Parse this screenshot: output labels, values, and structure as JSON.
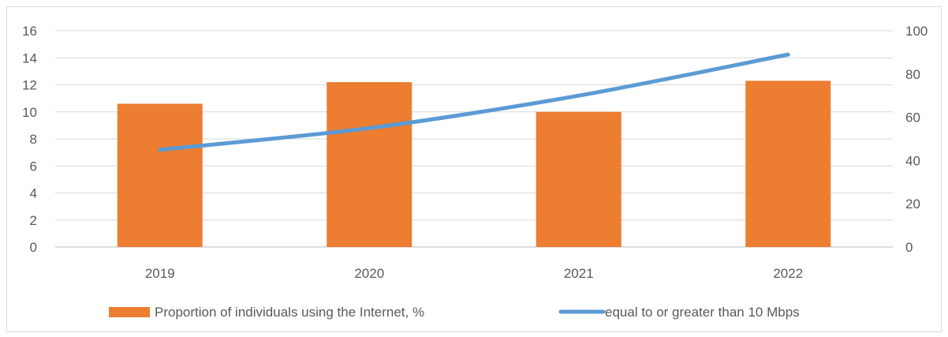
{
  "chart_data": {
    "type": "bar",
    "categories": [
      "2019",
      "2020",
      "2021",
      "2022"
    ],
    "series": [
      {
        "name": "Proportion of individuals using the Internet, %",
        "type": "bar",
        "axis": "left",
        "color": "#ED7D31",
        "values": [
          10.6,
          12.2,
          10.0,
          12.3
        ]
      },
      {
        "name": "equal to or greater than 10 Mbps",
        "type": "line",
        "axis": "right",
        "color": "#5B9BD5",
        "values": [
          45,
          55,
          70,
          89
        ]
      }
    ],
    "y_left": {
      "range": [
        0,
        16
      ],
      "ticks": [
        "0",
        "2",
        "4",
        "6",
        "8",
        "10",
        "12",
        "14",
        "16"
      ]
    },
    "y_right": {
      "range": [
        0,
        100
      ],
      "ticks": [
        "0",
        "20",
        "40",
        "60",
        "80",
        "100"
      ]
    },
    "grid": true,
    "legend_position": "bottom"
  }
}
